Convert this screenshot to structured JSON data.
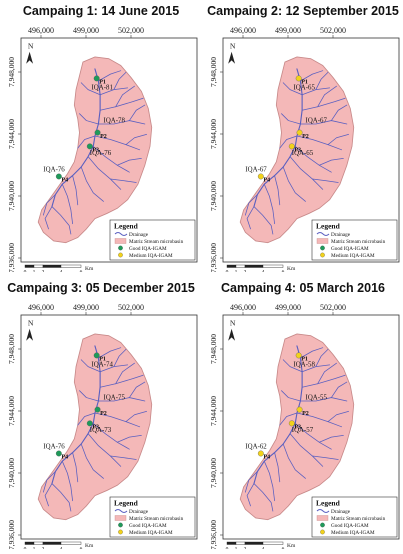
{
  "panels": [
    {
      "title": "Campaing 1: 14 June 2015",
      "points": [
        {
          "id": "P1",
          "iqa": "IQA-81",
          "class": "good"
        },
        {
          "id": "P2",
          "iqa": "IQA-78",
          "class": "good"
        },
        {
          "id": "P3",
          "iqa": "IQA-76",
          "class": "good"
        },
        {
          "id": "P4",
          "iqa": "IQA-76",
          "class": "good"
        }
      ]
    },
    {
      "title": "Campaing 2: 12 September 2015",
      "points": [
        {
          "id": "P1",
          "iqa": "IQA-65",
          "class": "medium"
        },
        {
          "id": "P2",
          "iqa": "IQA-67",
          "class": "medium"
        },
        {
          "id": "P3",
          "iqa": "IQA-65",
          "class": "medium"
        },
        {
          "id": "P4",
          "iqa": "IQA-67",
          "class": "medium"
        }
      ]
    },
    {
      "title": "Campaing 3: 05 December 2015",
      "points": [
        {
          "id": "P1",
          "iqa": "IQA-74",
          "class": "good"
        },
        {
          "id": "P2",
          "iqa": "IQA-75",
          "class": "good"
        },
        {
          "id": "P3",
          "iqa": "IQA-73",
          "class": "good"
        },
        {
          "id": "P4",
          "iqa": "IQA-76",
          "class": "good"
        }
      ]
    },
    {
      "title": "Campaing 4: 05 March 2016",
      "points": [
        {
          "id": "P1",
          "iqa": "IQA-58",
          "class": "medium"
        },
        {
          "id": "P2",
          "iqa": "IQA-55",
          "class": "medium"
        },
        {
          "id": "P3",
          "iqa": "IQA-57",
          "class": "medium"
        },
        {
          "id": "P4",
          "iqa": "IQA-62",
          "class": "medium"
        }
      ]
    }
  ],
  "axes": {
    "x_ticks": [
      "496,000",
      "499,000",
      "502,000"
    ],
    "y_ticks": [
      "7,948,000",
      "7,944,000",
      "7,940,000",
      "7,936,000"
    ]
  },
  "north": "N",
  "legend": {
    "title": "Legend",
    "items": [
      {
        "label": "Drainage",
        "symbol": "line",
        "color": "#5a5fc0"
      },
      {
        "label": "Matriz Stream microbasin",
        "symbol": "area",
        "color": "#f4b8b8"
      },
      {
        "label": "Good IQA-IGAM",
        "symbol": "dot",
        "color": "#1f9a5a"
      },
      {
        "label": "Medium IQA-IGAM",
        "symbol": "dot",
        "color": "#f2d21b"
      }
    ]
  },
  "scalebar": {
    "labels": [
      "0",
      "1",
      "2",
      "4",
      "6"
    ],
    "unit": "Km"
  },
  "colors": {
    "basin_fill": "#f4b8b8",
    "basin_stroke": "#c88a8a",
    "drainage": "#5a5fc0",
    "good": "#1f9a5a",
    "medium": "#f2d21b",
    "frame": "#333333"
  }
}
